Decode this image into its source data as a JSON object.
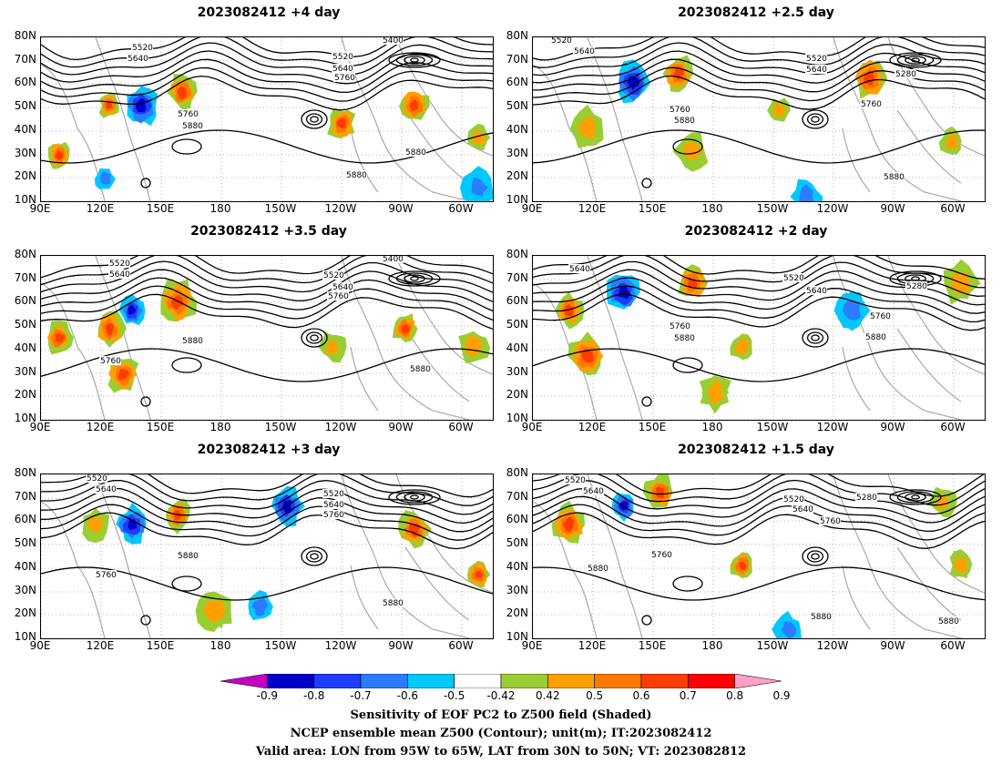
{
  "panels": [
    {
      "title": "2023082412 +4 day",
      "contours": [
        "5520",
        "5640",
        "5520",
        "5640",
        "5760",
        "5760",
        "5880",
        "5880",
        "5880",
        "5400"
      ]
    },
    {
      "title": "2023082412 +2.5 day",
      "contours": [
        "5520",
        "5640",
        "5520",
        "5640",
        "5280",
        "5760",
        "5760",
        "5880",
        "5880"
      ]
    },
    {
      "title": "2023082412 +3.5 day",
      "contours": [
        "5520",
        "5640",
        "5520",
        "5640",
        "5760",
        "5400",
        "5760",
        "5880",
        "5880"
      ]
    },
    {
      "title": "2023082412 +2 day",
      "contours": [
        "5640",
        "5520",
        "5640",
        "5280",
        "5760",
        "5760",
        "5880",
        "5880"
      ]
    },
    {
      "title": "2023082412 +3 day",
      "contours": [
        "5520",
        "5640",
        "5520",
        "5640",
        "5760",
        "5760",
        "5880",
        "5880"
      ]
    },
    {
      "title": "2023082412 +1.5 day",
      "contours": [
        "5520",
        "5640",
        "5520",
        "5640",
        "5280",
        "5760",
        "5760",
        "5880",
        "5880",
        "5880"
      ]
    }
  ],
  "axes": {
    "y_ticks": [
      "80N",
      "70N",
      "60N",
      "50N",
      "40N",
      "30N",
      "20N",
      "10N"
    ],
    "x_ticks": [
      "90E",
      "120E",
      "150E",
      "180",
      "150W",
      "120W",
      "90W",
      "60W"
    ]
  },
  "colorbar": {
    "labels": [
      "-0.9",
      "-0.8",
      "-0.7",
      "-0.6",
      "-0.5",
      "-0.42",
      "0.42",
      "0.5",
      "0.6",
      "0.7",
      "0.8",
      "0.9"
    ],
    "colors": [
      "#c400c4",
      "#0000c8",
      "#1e3cff",
      "#2a7dff",
      "#00c8ff",
      "#ffffff",
      "#9acd32",
      "#ffa000",
      "#ff7800",
      "#ff3c00",
      "#ff0000",
      "#ffa0c8"
    ]
  },
  "caption": {
    "line1": "Sensitivity of EOF PC2 to Z500 field (Shaded)",
    "line2": "NCEP ensemble mean Z500 (Contour); unit(m); IT:2023082412",
    "line3": "Valid area: LON from 95W to 65W, LAT from 30N to 50N; VT: 2023082812"
  },
  "colors": {
    "contour": "#000000",
    "coast": "#a9a9a9",
    "grid": "#9a9a9a"
  }
}
